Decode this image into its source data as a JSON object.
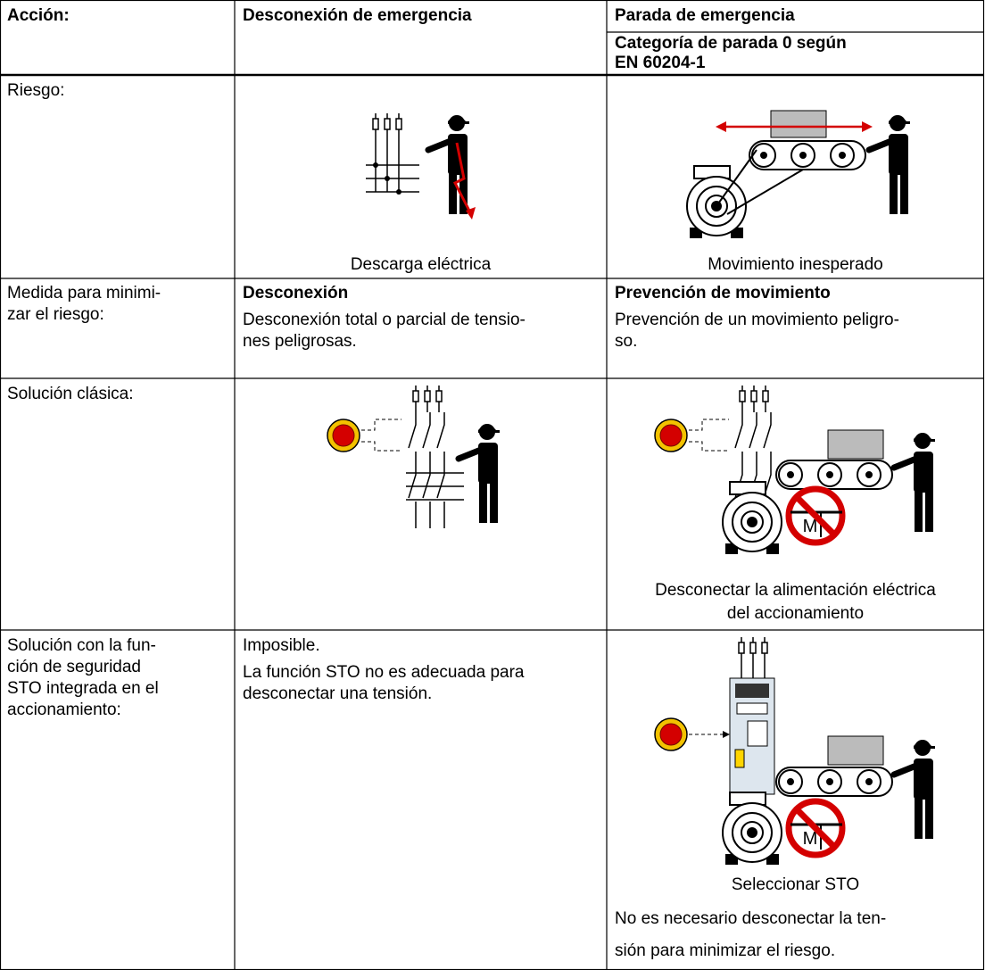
{
  "header": {
    "action": "Acción:",
    "col2": "Desconexión de emergencia",
    "col3": "Parada de emergencia",
    "col3_sub": [
      "Categoría de parada 0 según",
      "EN 60204-1"
    ]
  },
  "rows": [
    {
      "label": [
        "Riesgo:"
      ],
      "col2": {
        "caption": "Descarga eléctrica"
      },
      "col3": {
        "caption": "Movimiento inesperado"
      }
    },
    {
      "label": [
        "Medida para minimi-",
        "zar el riesgo:"
      ],
      "col2": {
        "heading": "Desconexión",
        "lines": [
          "Desconexión total o parcial de tensio-",
          "nes peligrosas."
        ]
      },
      "col3": {
        "heading": "Prevención de movimiento",
        "lines": [
          "Prevención de un movimiento peligro-",
          "so."
        ]
      }
    },
    {
      "label": [
        "Solución clásica:"
      ],
      "col3": {
        "caption": [
          "Desconectar la alimentación eléctrica",
          "del accionamiento"
        ]
      }
    },
    {
      "label": [
        "Solución con la fun-",
        "ción de seguridad",
        "STO integrada en el",
        "accionamiento:"
      ],
      "col2": {
        "lines": [
          "Imposible.",
          "La función STO no es adecuada para",
          "desconectar una tensión."
        ]
      },
      "col3": {
        "caption": "Seleccionar STO",
        "lines": [
          "No es necesario desconectar la ten-",
          "sión para minimizar el riesgo."
        ]
      }
    }
  ]
}
